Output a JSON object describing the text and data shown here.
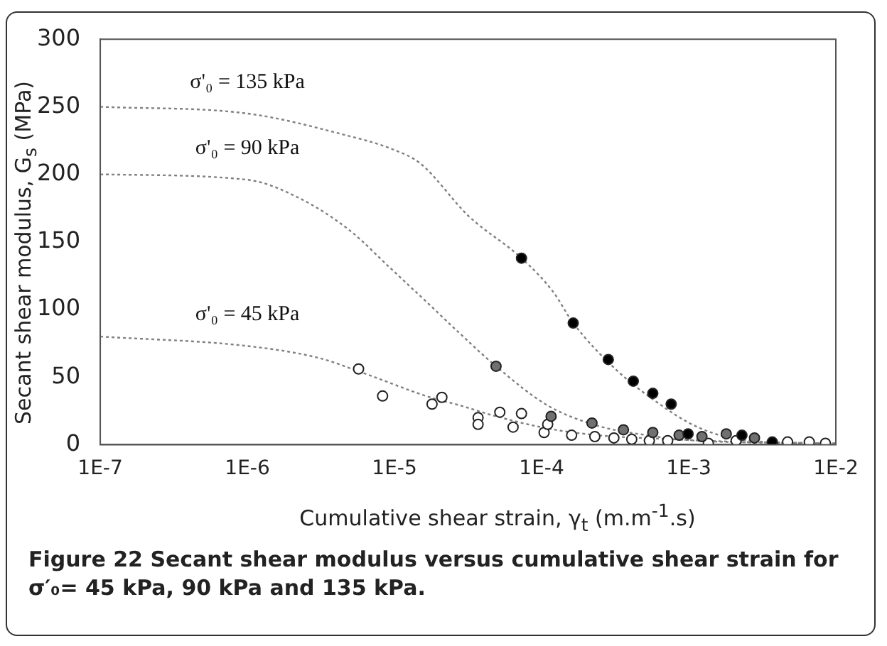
{
  "chart_data": {
    "type": "scatter",
    "xlabel": "Cumulative shear strain, γ$_{t}$ (m.m$^{-1}$.s)",
    "ylabel": "Secant shear modulus, G$_{s}$ (MPa)",
    "log": "x",
    "xlim": [
      1e-07,
      0.01
    ],
    "xticks": [
      {
        "value": 1e-07,
        "label": "1E-7"
      },
      {
        "value": 1e-06,
        "label": "1E-6"
      },
      {
        "value": 1e-05,
        "label": "1E-5"
      },
      {
        "value": 0.0001,
        "label": "1E-4"
      },
      {
        "value": 0.001,
        "label": "1E-3"
      },
      {
        "value": 0.01,
        "label": "1E-2"
      }
    ],
    "ylim": [
      0,
      300
    ],
    "yticks": [
      0,
      50,
      100,
      150,
      200,
      250,
      300
    ],
    "grid": false,
    "legend": false,
    "marker": "circle",
    "series": [
      {
        "name": "σ'₀ = 135 kPa",
        "type": "line",
        "marker": "none",
        "line_style": "dotted",
        "color": "#808080",
        "x": [
          1e-07,
          1e-06,
          4.3e-06,
          1e-05,
          1.5e-05,
          3.2e-05,
          7.3e-05,
          0.00012,
          0.000164,
          0.00031,
          0.00058,
          0.00115,
          0.0025,
          0.01
        ],
        "values": [
          250,
          245,
          230,
          218,
          208,
          169,
          138,
          113,
          90,
          57,
          33,
          13,
          3,
          1
        ]
      },
      {
        "name": "σ'₀ = 90 kPa",
        "type": "line",
        "marker": "none",
        "line_style": "dotted",
        "color": "#808080",
        "x": [
          1e-07,
          1e-06,
          2.2e-06,
          4.9e-06,
          9.3e-06,
          1.75e-05,
          2.8e-05,
          4.9e-05,
          0.00011,
          0.00024,
          0.00052,
          0.0011,
          0.01
        ],
        "values": [
          200,
          196,
          183,
          159,
          131,
          103,
          82,
          58,
          29,
          14,
          7,
          3,
          1
        ]
      },
      {
        "name": "σ'₀ = 45 kPa",
        "type": "line",
        "marker": "none",
        "line_style": "dotted",
        "color": "#808080",
        "x": [
          1e-07,
          1e-06,
          3.1e-06,
          5.8e-06,
          1.75e-05,
          2.8e-05,
          4.9e-05,
          0.00011,
          0.00024,
          0.00079,
          0.0023,
          0.01
        ],
        "values": [
          80,
          73,
          64,
          54,
          35,
          29,
          21,
          12,
          7,
          4,
          2,
          1
        ]
      },
      {
        "color": "#000000",
        "x": [
          7.3e-05,
          0.000164,
          0.000284,
          0.00042,
          0.00057,
          0.00076,
          0.00099,
          0.0023,
          0.0037
        ],
        "values": [
          138,
          90,
          63,
          47,
          38,
          30,
          8,
          7,
          2
        ]
      },
      {
        "color": "#707070",
        "x": [
          4.9e-05,
          0.000116,
          0.00022,
          0.00036,
          0.00057,
          0.00086,
          0.00123,
          0.0018,
          0.0028
        ],
        "values": [
          58,
          21,
          16,
          11,
          9,
          7,
          6,
          8,
          5
        ]
      },
      {
        "color": "#ffffff",
        "x": [
          5.7e-06,
          8.3e-06,
          1.8e-05,
          2.1e-05,
          3.7e-05,
          3.7e-05,
          5.2e-05,
          6.4e-05,
          7.3e-05,
          0.000104,
          0.00011,
          0.00016,
          0.00023,
          0.00031,
          0.00041,
          0.00054,
          0.00072,
          0.00136,
          0.0021,
          0.0047,
          0.0066,
          0.0085
        ],
        "values": [
          56,
          36,
          30,
          35,
          20,
          15,
          24,
          13,
          23,
          9,
          15,
          7,
          6,
          5,
          4,
          3,
          3,
          1,
          3,
          2,
          2,
          1
        ]
      }
    ],
    "annotations": [
      "Figure 22 Secant shear modulus versus cumulative shear strain for σ′₀= 45 kPa, 90 kPa and 135 kPa."
    ]
  }
}
